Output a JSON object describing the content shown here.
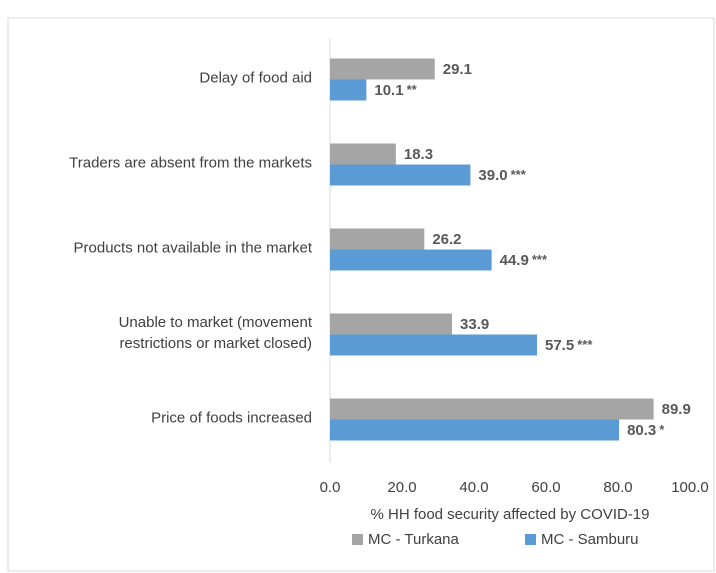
{
  "chart_data": {
    "type": "hbar",
    "categories": [
      "Delay of food aid",
      "Traders are absent from the markets",
      "Products not available in the market",
      [
        "Unable to market (movement",
        "restrictions or market closed)"
      ],
      "Price of foods increased"
    ],
    "series": [
      {
        "name": "MC - Turkana",
        "color": "#a5a5a5",
        "values": [
          29.1,
          18.3,
          26.2,
          33.9,
          89.9
        ]
      },
      {
        "name": "MC - Samburu",
        "color": "#5b9bd5",
        "values": [
          10.1,
          39,
          44.9,
          57.5,
          80.3
        ],
        "value_labels": [
          "10.1",
          "39.0",
          "44.9",
          "57.5",
          "80.3"
        ],
        "significance": [
          "**",
          "***",
          "***",
          "***",
          "*"
        ]
      }
    ],
    "xlabel": "% HH food security affected by COVID-19",
    "xlim": [
      0,
      100
    ],
    "xticks": [
      {
        "value": 0,
        "label": "0.0"
      },
      {
        "value": 20,
        "label": "20.0"
      },
      {
        "value": 40,
        "label": "40.0"
      },
      {
        "value": 60,
        "label": "60.0"
      },
      {
        "value": 80,
        "label": "80.0"
      },
      {
        "value": 100,
        "label": "100.0"
      }
    ],
    "legend": "bottom"
  }
}
